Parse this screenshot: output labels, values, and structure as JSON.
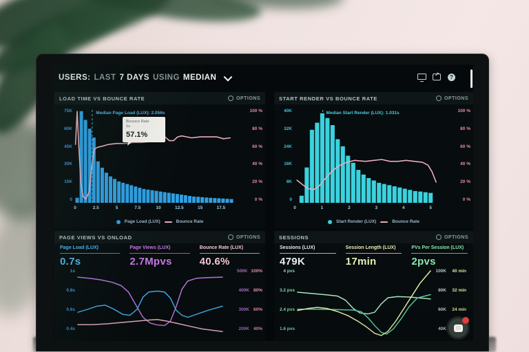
{
  "top_bar": {
    "users_label": "USERS:",
    "last_label": "LAST",
    "days_label": "7 DAYS",
    "using_label": "USING",
    "metric_label": "MEDIAN",
    "icons": [
      "monitor-icon",
      "share-icon",
      "help-icon"
    ]
  },
  "charts": {
    "load_time": {
      "title": "LOAD TIME VS BOUNCE RATE",
      "options_label": "OPTIONS",
      "y_left": [
        "75K",
        "60K",
        "45K",
        "30K",
        "15K",
        "0"
      ],
      "y_right": [
        "100 %",
        "80 %",
        "60 %",
        "40 %",
        "20 %",
        "0 %"
      ],
      "x_ticks": [
        "0",
        "2.5",
        "5",
        "7.5",
        "10",
        "12.5",
        "15",
        "17.5"
      ],
      "median_label": "Median Page Load (LUX): 2.056s",
      "median_x": 2.056,
      "median_color": "#4fb6e8",
      "tooltip": {
        "line1": "Bounce Rate",
        "line2": "1s",
        "value": "57.1%"
      },
      "legend": [
        {
          "label": "Page Load (LUX)",
          "color": "#2f9fe2"
        },
        {
          "label": "Bounce Rate",
          "color": "#e9aebc"
        }
      ],
      "xlim": [
        0,
        19
      ],
      "bars": {
        "x0": 0.25,
        "dx": 0.5,
        "ymax": 75,
        "color": "#2f9fe2",
        "values": [
          4,
          73,
          66,
          59,
          52,
          33,
          28,
          24,
          21,
          19,
          17,
          16,
          15,
          14,
          13,
          12,
          11,
          10.5,
          10,
          9.5,
          9,
          8.5,
          8,
          7.5,
          7,
          6.5,
          6,
          5.5,
          5,
          4.8,
          4.5,
          4.2,
          4,
          3.8,
          3.6,
          3.4,
          3.2,
          3
        ]
      },
      "lines": [
        {
          "name": "bounce_rate",
          "color": "#e9aebc",
          "width": 1.6,
          "ylim": [
            0,
            100
          ],
          "points": [
            [
              0.05,
              62
            ],
            [
              0.25,
              97
            ],
            [
              0.45,
              60
            ],
            [
              0.7,
              20
            ],
            [
              0.95,
              7
            ],
            [
              1.3,
              4
            ],
            [
              1.7,
              12
            ],
            [
              2.0,
              38
            ],
            [
              2.3,
              57
            ],
            [
              2.7,
              59
            ],
            [
              3.2,
              60
            ],
            [
              4,
              62
            ],
            [
              5,
              63
            ],
            [
              6,
              63
            ],
            [
              7,
              64
            ],
            [
              8,
              64
            ],
            [
              9,
              65
            ],
            [
              9.8,
              66
            ],
            [
              10.3,
              70
            ],
            [
              10.8,
              70
            ],
            [
              11.3,
              66
            ],
            [
              11.8,
              66
            ],
            [
              12.3,
              70
            ],
            [
              12.8,
              71
            ],
            [
              13.4,
              70
            ],
            [
              14,
              69
            ],
            [
              15,
              70
            ],
            [
              16,
              70
            ],
            [
              17,
              70
            ],
            [
              17.8,
              68
            ],
            [
              18.6,
              69
            ]
          ]
        }
      ]
    },
    "start_render": {
      "title": "START RENDER VS BOUNCE RATE",
      "options_label": "OPTIONS",
      "y_left": [
        "40K",
        "32K",
        "24K",
        "16K",
        "8K",
        "0"
      ],
      "y_right": [
        "100 %",
        "80 %",
        "60 %",
        "40 %",
        "20 %",
        "0 %"
      ],
      "x_ticks": [
        "0",
        "1",
        "2",
        "3",
        "4",
        "5"
      ],
      "median_label": "Median Start Render (LUX): 1.031s",
      "median_x": 1.031,
      "median_color": "#46cede",
      "legend": [
        {
          "label": "Start Render (LUX)",
          "color": "#3ad2de"
        },
        {
          "label": "Bounce Rate",
          "color": "#e9aebc"
        }
      ],
      "xlim": [
        0,
        5.4
      ],
      "bars": {
        "x0": 0.25,
        "dx": 0.19,
        "ymax": 40,
        "color": "#3ad2de",
        "values": [
          3,
          15,
          31,
          34,
          38,
          36,
          33,
          27,
          24,
          20,
          17,
          14,
          12,
          10.5,
          9.5,
          8.5,
          8,
          7.5,
          7,
          6.5,
          6,
          5.5,
          5,
          4.8,
          4.5,
          4.2
        ]
      },
      "lines": [
        {
          "name": "bounce_rate",
          "color": "#e9aebc",
          "width": 1.6,
          "ylim": [
            0,
            100
          ],
          "points": [
            [
              0.08,
              24
            ],
            [
              0.3,
              19
            ],
            [
              0.5,
              15
            ],
            [
              0.7,
              14
            ],
            [
              0.9,
              18
            ],
            [
              1.1,
              25
            ],
            [
              1.35,
              33
            ],
            [
              1.6,
              39
            ],
            [
              1.9,
              43
            ],
            [
              2.2,
              45
            ],
            [
              2.6,
              44
            ],
            [
              2.9,
              45
            ],
            [
              3.2,
              46
            ],
            [
              3.5,
              44
            ],
            [
              3.8,
              44
            ],
            [
              4.1,
              45
            ],
            [
              4.4,
              44
            ],
            [
              4.7,
              43
            ],
            [
              4.9,
              40
            ],
            [
              5.05,
              33
            ],
            [
              5.2,
              22
            ]
          ]
        }
      ]
    },
    "page_views": {
      "title": "PAGE VIEWS VS ONLOAD",
      "options_label": "OPTIONS",
      "metrics": [
        {
          "label": "Page Load (LUX)",
          "value": "0.7s",
          "color": "#4cb8f2"
        },
        {
          "label": "Page Views (LUX)",
          "value": "2.7Mpvs",
          "color": "#c678e6"
        },
        {
          "label": "Bounce Rate (LUX)",
          "value": "40.6%",
          "color": "#f2c6d2"
        }
      ],
      "y_left": [
        "1s",
        "0.8s",
        "0.6s",
        "0.4s"
      ],
      "y_right_views": [
        "500K",
        "400K",
        "300K",
        "200K"
      ],
      "y_right_bounce": [
        "100%",
        "80%",
        "60%",
        "40%"
      ],
      "xlim": [
        0,
        1
      ],
      "lines": [
        {
          "name": "page_views",
          "color": "#b674d8",
          "width": 1.5,
          "ylim": [
            170,
            525
          ],
          "points": [
            [
              0,
              482
            ],
            [
              0.08,
              476
            ],
            [
              0.16,
              468
            ],
            [
              0.24,
              455
            ],
            [
              0.3,
              438
            ],
            [
              0.35,
              405
            ],
            [
              0.4,
              340
            ],
            [
              0.45,
              275
            ],
            [
              0.5,
              245
            ],
            [
              0.55,
              235
            ],
            [
              0.6,
              232
            ],
            [
              0.64,
              255
            ],
            [
              0.68,
              330
            ],
            [
              0.72,
              420
            ],
            [
              0.76,
              462
            ],
            [
              0.82,
              476
            ],
            [
              0.9,
              480
            ],
            [
              1,
              482
            ]
          ]
        },
        {
          "name": "page_load",
          "color": "#3fa9e8",
          "width": 1.5,
          "ylim": [
            0.35,
            1.03
          ],
          "points": [
            [
              0,
              0.6
            ],
            [
              0.07,
              0.63
            ],
            [
              0.13,
              0.66
            ],
            [
              0.19,
              0.67
            ],
            [
              0.25,
              0.63
            ],
            [
              0.31,
              0.58
            ],
            [
              0.36,
              0.57
            ],
            [
              0.41,
              0.63
            ],
            [
              0.45,
              0.75
            ],
            [
              0.49,
              0.8
            ],
            [
              0.55,
              0.81
            ],
            [
              0.6,
              0.8
            ],
            [
              0.64,
              0.74
            ],
            [
              0.68,
              0.62
            ],
            [
              0.72,
              0.57
            ],
            [
              0.76,
              0.55
            ],
            [
              0.82,
              0.58
            ],
            [
              0.9,
              0.62
            ],
            [
              1,
              0.66
            ]
          ]
        },
        {
          "name": "bounce_rate",
          "color": "#eab2c0",
          "width": 1.5,
          "ylim": [
            26,
            106
          ],
          "points": [
            [
              0,
              41
            ],
            [
              0.1,
              41
            ],
            [
              0.2,
              42
            ],
            [
              0.3,
              43.5
            ],
            [
              0.4,
              45
            ],
            [
              0.5,
              46.5
            ],
            [
              0.55,
              47
            ],
            [
              0.62,
              45
            ],
            [
              0.7,
              42
            ],
            [
              0.78,
              39
            ],
            [
              0.86,
              36
            ],
            [
              1,
              33
            ]
          ]
        }
      ]
    },
    "sessions": {
      "title": "SESSIONS",
      "options_label": "OPTIONS",
      "metrics": [
        {
          "label": "Sessions (LUX)",
          "value": "479K",
          "color": "#e8eef0"
        },
        {
          "label": "Session Length (LUX)",
          "value": "17min",
          "color": "#e9efb2"
        },
        {
          "label": "PVs Per Session (LUX)",
          "value": "2pvs",
          "color": "#86e8ae"
        }
      ],
      "y_left": [
        "4 pvs",
        "3.2 pvs",
        "2.4 pvs",
        "1.6 pvs"
      ],
      "y_right_sessions": [
        "100K",
        "80K",
        "60K",
        "40K"
      ],
      "y_right_length": [
        "40 min",
        "32 min",
        "24 min",
        ""
      ],
      "xlim": [
        0,
        1
      ],
      "lines": [
        {
          "name": "pvs_per_session",
          "color": "#a9e9c2",
          "width": 1.5,
          "ylim": [
            1.3,
            4.15
          ],
          "points": [
            [
              0,
              3.18
            ],
            [
              0.12,
              3.12
            ],
            [
              0.22,
              3.07
            ],
            [
              0.3,
              3.02
            ],
            [
              0.36,
              2.85
            ],
            [
              0.42,
              2.5
            ],
            [
              0.47,
              2.32
            ],
            [
              0.53,
              2.28
            ],
            [
              0.58,
              2.35
            ],
            [
              0.63,
              2.7
            ],
            [
              0.68,
              2.95
            ],
            [
              0.75,
              3.0
            ],
            [
              0.85,
              2.98
            ],
            [
              1,
              2.9
            ]
          ]
        },
        {
          "name": "sessions",
          "color": "#55d0a2",
          "width": 1.5,
          "ylim": [
            24,
            104
          ],
          "points": [
            [
              0,
              57
            ],
            [
              0.15,
              57
            ],
            [
              0.3,
              56.5
            ],
            [
              0.42,
              56
            ],
            [
              0.48,
              54
            ],
            [
              0.53,
              47
            ],
            [
              0.58,
              38
            ],
            [
              0.63,
              30
            ],
            [
              0.67,
              28
            ],
            [
              0.72,
              34
            ],
            [
              0.78,
              46
            ],
            [
              0.84,
              60
            ],
            [
              0.9,
              70
            ],
            [
              1,
              74
            ]
          ]
        },
        {
          "name": "session_length",
          "color": "#e6edae",
          "width": 1.5,
          "ylim": [
            8,
            41
          ],
          "points": [
            [
              0,
              21
            ],
            [
              0.08,
              22
            ],
            [
              0.15,
              22.5
            ],
            [
              0.22,
              22
            ],
            [
              0.3,
              20.5
            ],
            [
              0.38,
              18.5
            ],
            [
              0.45,
              16
            ],
            [
              0.52,
              13
            ],
            [
              0.58,
              10
            ],
            [
              0.63,
              9
            ],
            [
              0.68,
              11
            ],
            [
              0.74,
              16
            ],
            [
              0.8,
              22
            ],
            [
              0.86,
              28
            ],
            [
              0.92,
              34
            ],
            [
              1,
              40
            ]
          ]
        }
      ]
    }
  }
}
